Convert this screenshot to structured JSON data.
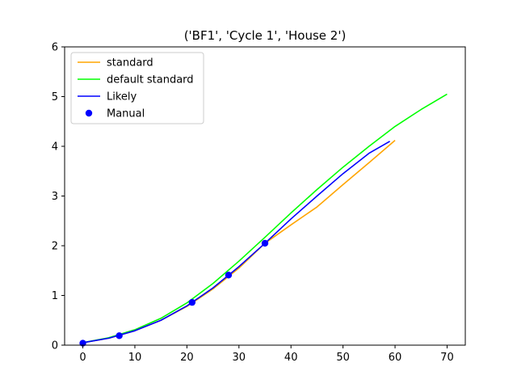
{
  "chart_data": {
    "type": "line",
    "title": "('BF1', 'Cycle 1', 'House 2')",
    "xlabel": "",
    "ylabel": "",
    "xlim": [
      -3.5,
      73.5
    ],
    "ylim": [
      0,
      6
    ],
    "x_ticks": [
      0,
      10,
      20,
      30,
      40,
      50,
      60,
      70
    ],
    "y_ticks": [
      0,
      1,
      2,
      3,
      4,
      5,
      6
    ],
    "grid": false,
    "legend_position": "top-left",
    "series": [
      {
        "name": "standard",
        "kind": "line",
        "color": "#ffa500",
        "x": [
          0,
          5,
          10,
          15,
          20,
          25,
          30,
          35,
          40,
          45,
          50,
          55,
          60
        ],
        "y": [
          0.05,
          0.14,
          0.29,
          0.5,
          0.78,
          1.13,
          1.55,
          2.05,
          2.42,
          2.78,
          3.23,
          3.67,
          4.12
        ]
      },
      {
        "name": "default standard",
        "kind": "line",
        "color": "#00ff00",
        "x": [
          0,
          5,
          10,
          15,
          20,
          25,
          30,
          35,
          40,
          45,
          50,
          55,
          60,
          65,
          70
        ],
        "y": [
          0.05,
          0.15,
          0.31,
          0.54,
          0.85,
          1.24,
          1.69,
          2.17,
          2.66,
          3.13,
          3.58,
          4.0,
          4.4,
          4.74,
          5.05
        ]
      },
      {
        "name": "Likely",
        "kind": "line",
        "color": "#0000ff",
        "x": [
          0,
          5,
          10,
          15,
          20,
          25,
          30,
          35,
          40,
          45,
          50,
          55,
          59
        ],
        "y": [
          0.05,
          0.14,
          0.29,
          0.5,
          0.79,
          1.15,
          1.58,
          2.05,
          2.54,
          3.0,
          3.45,
          3.86,
          4.1
        ]
      },
      {
        "name": "Manual",
        "kind": "scatter",
        "color": "#0000ff",
        "x": [
          0,
          7,
          21,
          28,
          35
        ],
        "y": [
          0.04,
          0.19,
          0.86,
          1.41,
          2.05
        ]
      }
    ]
  }
}
